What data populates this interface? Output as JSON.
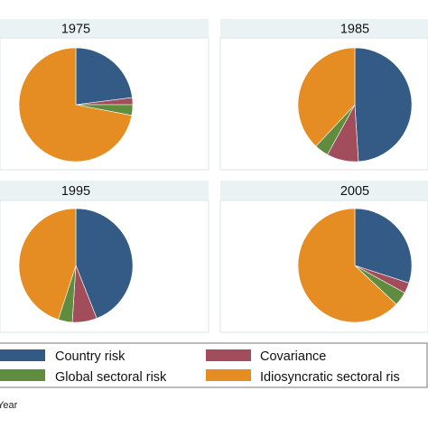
{
  "chart_data": {
    "type": "pie",
    "panels": [
      {
        "title": "1975",
        "values": [
          23,
          2,
          3,
          72
        ]
      },
      {
        "title": "1985",
        "values": [
          49,
          9,
          4,
          38
        ]
      },
      {
        "title": "1995",
        "values": [
          44,
          7,
          4,
          45
        ]
      },
      {
        "title": "2005",
        "values": [
          30,
          3,
          4,
          63
        ]
      }
    ],
    "series": [
      {
        "name": "Country risk",
        "color": "#335b85"
      },
      {
        "name": "Covariance",
        "color": "#a24d5c"
      },
      {
        "name": "Global sectoral risk",
        "color": "#5f8c3e"
      },
      {
        "name": "Idiosyncratic sectoral ris",
        "color": "#e58d22"
      }
    ],
    "legend_position": "bottom",
    "note": "Year"
  }
}
